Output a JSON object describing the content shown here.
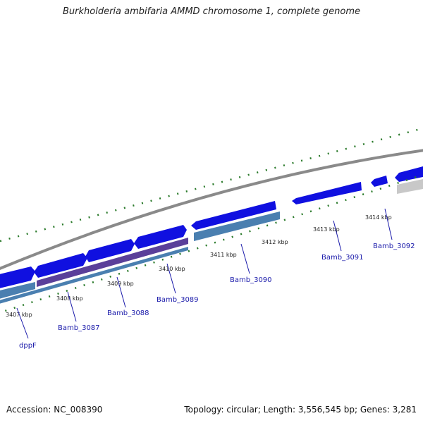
{
  "title": "Burkholderia ambifaria AMMD chromosome 1, complete genome",
  "footer": {
    "accession_label": "Accession: NC_008390",
    "summary_label": "Topology: circular; Length: 3,556,545 bp; Genes: 3,281"
  },
  "ruler": {
    "ticks": [
      "3407 kbp",
      "3408 kbp",
      "3409 kbp",
      "3410 kbp",
      "3411 kbp",
      "3412 kbp",
      "3413 kbp",
      "3414 kbp"
    ]
  },
  "genes": [
    "dppF",
    "Bamb_3087",
    "Bamb_3088",
    "Bamb_3089",
    "Bamb_3090",
    "Bamb_3091",
    "Bamb_3092"
  ],
  "colors": {
    "backbone": "#8a8a8a",
    "cds_forward": "#1010e0",
    "feature_purple": "#5a3f9a",
    "feature_steel": "#4a7fb0",
    "feature_grey": "#c8c8c8",
    "tick_green": "#2a7a2a",
    "label_blue": "#1a1aaa"
  }
}
